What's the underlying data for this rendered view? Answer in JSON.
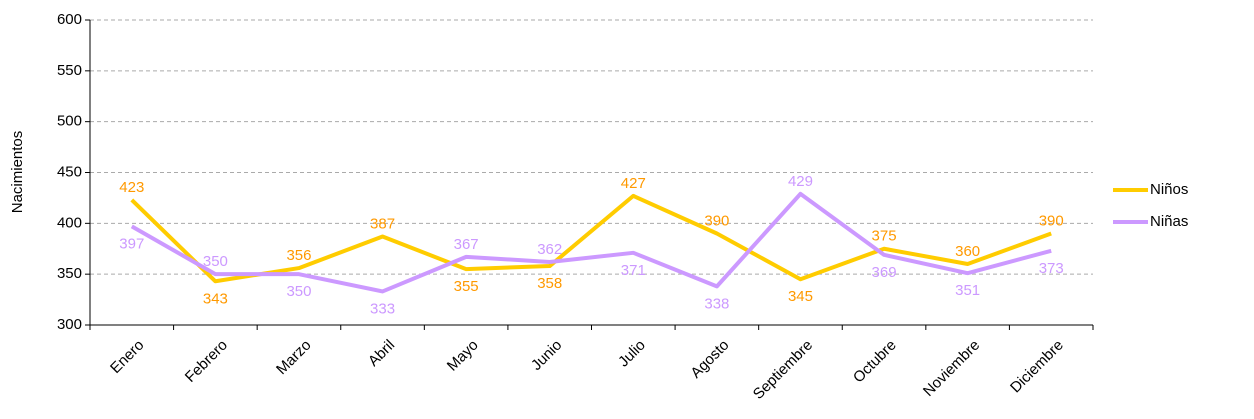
{
  "chart_data": {
    "type": "line",
    "y_label": "Nacimientos",
    "categories": [
      "Enero",
      "Febrero",
      "Marzo",
      "Abril",
      "Mayo",
      "Junio",
      "Julio",
      "Agosto",
      "Septiembre",
      "Octubre",
      "Noviembre",
      "Diciembre"
    ],
    "series": [
      {
        "name": "Niños",
        "color": "#ffcc00",
        "label_color": "#ff9900",
        "values": [
          423,
          343,
          356,
          387,
          355,
          358,
          427,
          390,
          345,
          375,
          360,
          390
        ]
      },
      {
        "name": "Niñas",
        "color": "#cc99ff",
        "label_color": "#cc99ff",
        "values": [
          397,
          350,
          350,
          333,
          367,
          362,
          371,
          338,
          429,
          369,
          351,
          373
        ]
      }
    ],
    "ylim": [
      300,
      600
    ],
    "yticks": [
      300,
      350,
      400,
      450,
      500,
      550,
      600
    ],
    "grid": true,
    "legend": "right"
  }
}
